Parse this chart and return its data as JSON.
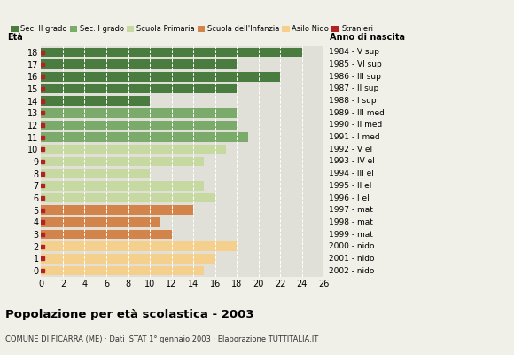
{
  "ages": [
    0,
    1,
    2,
    3,
    4,
    5,
    6,
    7,
    8,
    9,
    10,
    11,
    12,
    13,
    14,
    15,
    16,
    17,
    18
  ],
  "years": [
    "2002 - nido",
    "2001 - nido",
    "2000 - nido",
    "1999 - mat",
    "1998 - mat",
    "1997 - mat",
    "1996 - I el",
    "1995 - II el",
    "1994 - III el",
    "1993 - IV el",
    "1992 - V el",
    "1991 - I med",
    "1990 - II med",
    "1989 - III med",
    "1988 - I sup",
    "1987 - II sup",
    "1986 - III sup",
    "1985 - VI sup",
    "1984 - V sup"
  ],
  "values": [
    15,
    16,
    18,
    12,
    11,
    14,
    16,
    15,
    10,
    15,
    17,
    19,
    18,
    18,
    10,
    18,
    22,
    18,
    24
  ],
  "categories_order": [
    "Sec. II grado",
    "Sec. I grado",
    "Scuola Primaria",
    "Scuola dell'Infanzia",
    "Asilo Nido"
  ],
  "categories": {
    "Sec. II grado": {
      "ages": [
        14,
        15,
        16,
        17,
        18
      ],
      "color": "#4a7c3f"
    },
    "Sec. I grado": {
      "ages": [
        11,
        12,
        13
      ],
      "color": "#7aab6a"
    },
    "Scuola Primaria": {
      "ages": [
        6,
        7,
        8,
        9,
        10
      ],
      "color": "#c5d9a0"
    },
    "Scuola dell'Infanzia": {
      "ages": [
        3,
        4,
        5
      ],
      "color": "#d2844a"
    },
    "Asilo Nido": {
      "ages": [
        0,
        1,
        2
      ],
      "color": "#f5d08c"
    }
  },
  "stranieri_color": "#b22222",
  "background_color": "#f0f0e8",
  "bar_background": "#e0e0d8",
  "title": "Popolazione per età scolastica - 2003",
  "subtitle": "COMUNE DI FICARRA (ME) · Dati ISTAT 1° gennaio 2003 · Elaborazione TUTTITALIA.IT",
  "xlabel_eta": "Età",
  "xlabel_anno": "Anno di nascita",
  "xlim": [
    0,
    26
  ],
  "xticks": [
    0,
    2,
    4,
    6,
    8,
    10,
    12,
    14,
    16,
    18,
    20,
    22,
    24,
    26
  ]
}
